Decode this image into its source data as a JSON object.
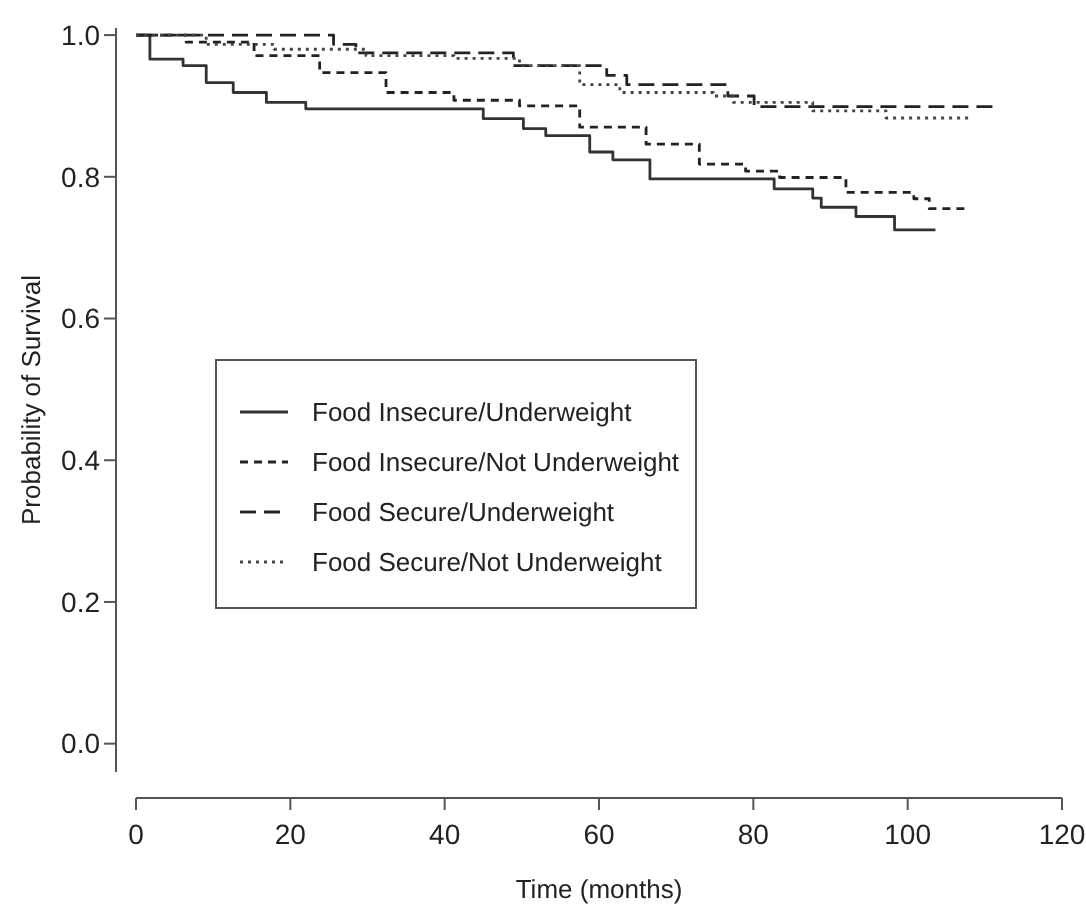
{
  "chart_data": {
    "type": "step",
    "xlabel": "Time (months)",
    "ylabel": "Probability of Survival",
    "xlim": [
      0,
      120
    ],
    "xticks": [
      0,
      20,
      40,
      60,
      80,
      100,
      120
    ],
    "ylim": [
      -0.04,
      1.01
    ],
    "yticks": [
      {
        "value": 0,
        "label": "0.0"
      },
      {
        "value": 0.2,
        "label": "0.2"
      },
      {
        "value": 0.4,
        "label": "0.4"
      },
      {
        "value": 0.6,
        "label": "0.6"
      },
      {
        "value": 0.8,
        "label": "0.8"
      },
      {
        "value": 1,
        "label": "1.0"
      }
    ],
    "grid": false,
    "legend": "left",
    "series": [
      {
        "name": "Food Insecure/Underweight",
        "color": "#333333",
        "line_style": "solid",
        "x": [
          0,
          1.8,
          6.1,
          9.1,
          12.6,
          16.9,
          22,
          45,
          50.2,
          53.1,
          58.8,
          61.8,
          66.6,
          82.7,
          87.7,
          88.8,
          93.3,
          98.3,
          103.6
        ],
        "values": [
          1,
          0.966,
          0.957,
          0.933,
          0.919,
          0.905,
          0.896,
          0.882,
          0.868,
          0.858,
          0.835,
          0.824,
          0.797,
          0.783,
          0.77,
          0.757,
          0.744,
          0.725,
          0.725
        ]
      },
      {
        "name": "Food Insecure/Not Underweight",
        "color": "#222222",
        "line_style": "dashed",
        "x": [
          0,
          6.5,
          15.3,
          23.8,
          32.4,
          41.2,
          49.7,
          57.5,
          66.1,
          73,
          79,
          83.4,
          92,
          100.8,
          102.8,
          107.5
        ],
        "values": [
          1,
          0.99,
          0.971,
          0.947,
          0.919,
          0.908,
          0.9,
          0.87,
          0.846,
          0.818,
          0.808,
          0.799,
          0.778,
          0.769,
          0.755,
          0.755
        ]
      },
      {
        "name": "Food Secure/Underweight",
        "color": "#222222",
        "line_style": "longdash",
        "x": [
          0,
          25.6,
          28.5,
          48.9,
          61,
          63.6,
          76.7,
          80.1,
          111
        ],
        "values": [
          1,
          0.987,
          0.975,
          0.957,
          0.943,
          0.93,
          0.914,
          0.899,
          0.899
        ]
      },
      {
        "name": "Food Secure/Not Underweight",
        "color": "#444444",
        "line_style": "dotted",
        "x": [
          0,
          9.1,
          17.9,
          29.8,
          41.2,
          49.7,
          57.5,
          62.7,
          74.8,
          77.4,
          87.7,
          97.2,
          108.4
        ],
        "values": [
          1,
          0.987,
          0.98,
          0.971,
          0.967,
          0.957,
          0.93,
          0.919,
          0.914,
          0.905,
          0.893,
          0.883,
          0.883
        ]
      }
    ]
  }
}
